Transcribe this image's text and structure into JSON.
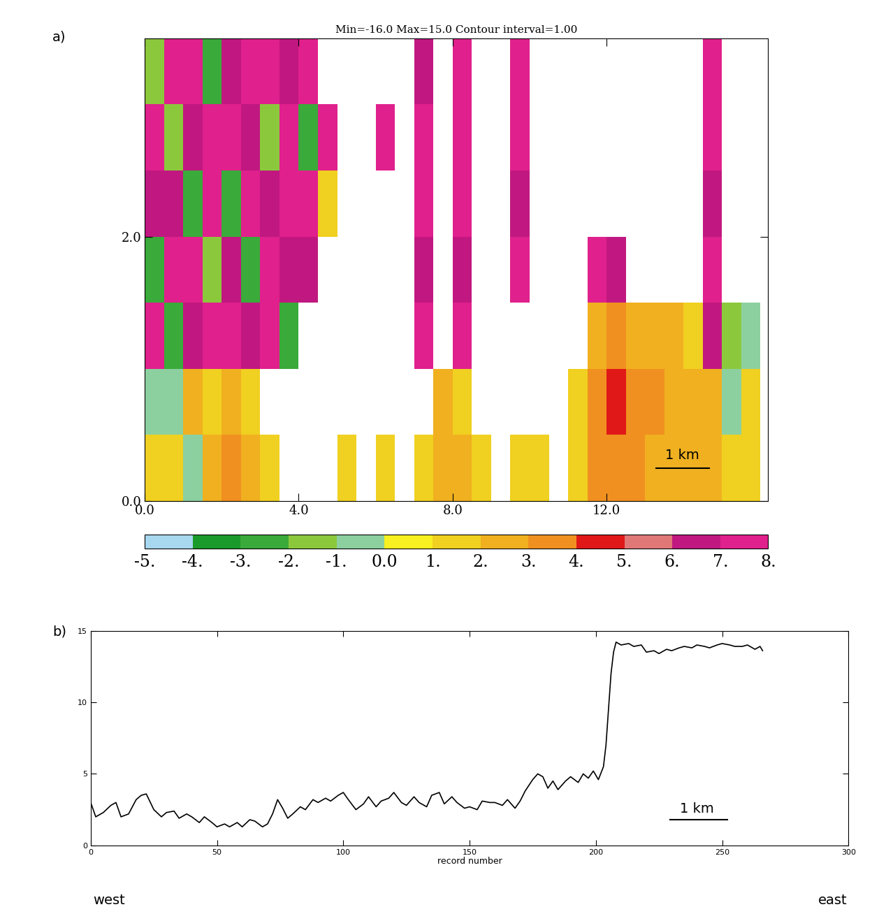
{
  "chart_data": [
    {
      "type": "heatmap",
      "title": "Min=-16.0 Max=15.0 Contour interval=1.00",
      "annotations": [
        "a)",
        "1 km"
      ],
      "x_edges": [
        0,
        0.5,
        1,
        1.5,
        2,
        2.5,
        3,
        3.5,
        4,
        4.5,
        5,
        5.5,
        6,
        6.5,
        7,
        7.5,
        8,
        8.5,
        9,
        9.5,
        10,
        10.5,
        11,
        11.5,
        12,
        12.5,
        13,
        13.5,
        14,
        14.5,
        15,
        15.5,
        16
      ],
      "y_edges": [
        0,
        0.5,
        1,
        1.5,
        2,
        2.5,
        3,
        3.5
      ],
      "cells": [
        [
          1,
          1,
          -1,
          2,
          3,
          2,
          1,
          null,
          null,
          null,
          1,
          null,
          1,
          null,
          1,
          2,
          2,
          1,
          null,
          1,
          1,
          null,
          1,
          3,
          3,
          3,
          2,
          2,
          2,
          2,
          1,
          1
        ],
        [
          -1,
          -1,
          2,
          1,
          2,
          1,
          null,
          null,
          null,
          null,
          null,
          null,
          null,
          null,
          null,
          2,
          1,
          null,
          null,
          null,
          null,
          null,
          1,
          3,
          4,
          3,
          3,
          2,
          2,
          2,
          -1,
          1
        ],
        [
          7,
          -3,
          6,
          7,
          7,
          6,
          7,
          -3,
          null,
          null,
          null,
          null,
          null,
          null,
          7,
          null,
          7,
          null,
          null,
          null,
          null,
          null,
          null,
          2,
          3,
          2,
          2,
          2,
          1,
          6,
          -2,
          -1
        ],
        [
          -3,
          7,
          7,
          -2,
          6,
          -3,
          7,
          6,
          6,
          null,
          null,
          null,
          null,
          null,
          6,
          null,
          6,
          null,
          null,
          7,
          null,
          null,
          null,
          7,
          6,
          null,
          null,
          null,
          null,
          7,
          null,
          null
        ],
        [
          6,
          6,
          -3,
          7,
          -3,
          7,
          6,
          7,
          7,
          1,
          null,
          null,
          null,
          null,
          7,
          null,
          7,
          null,
          null,
          6,
          null,
          null,
          null,
          null,
          null,
          null,
          null,
          null,
          null,
          6,
          null,
          null
        ],
        [
          7,
          -2,
          6,
          7,
          7,
          6,
          -2,
          7,
          -3,
          7,
          null,
          null,
          7,
          null,
          7,
          null,
          7,
          null,
          null,
          7,
          null,
          null,
          null,
          null,
          null,
          null,
          null,
          null,
          null,
          7,
          null,
          null
        ],
        [
          -2,
          7,
          7,
          -3,
          6,
          7,
          7,
          6,
          7,
          null,
          null,
          null,
          null,
          null,
          6,
          null,
          7,
          null,
          null,
          7,
          null,
          null,
          null,
          null,
          null,
          null,
          null,
          null,
          null,
          7,
          null,
          null
        ]
      ],
      "xlim": [
        0,
        16.2
      ],
      "ylim": [
        0,
        3.5
      ],
      "xticks": [
        {
          "value": 0,
          "label": "0.0"
        },
        {
          "value": 4,
          "label": "4.0"
        },
        {
          "value": 8,
          "label": "8.0"
        },
        {
          "value": 12,
          "label": "12.0"
        }
      ],
      "yticks": [
        {
          "value": 0,
          "label": "0.0"
        },
        {
          "value": 2,
          "label": "2.0"
        }
      ],
      "colorbar": {
        "range": [
          -5,
          8
        ],
        "ticks": [
          {
            "value": -5,
            "label": "-5."
          },
          {
            "value": -4,
            "label": "-4."
          },
          {
            "value": -3,
            "label": "-3."
          },
          {
            "value": -2,
            "label": "-2."
          },
          {
            "value": -1,
            "label": "-1."
          },
          {
            "value": 0,
            "label": "0.0"
          },
          {
            "value": 1,
            "label": "1."
          },
          {
            "value": 2,
            "label": "2."
          },
          {
            "value": 3,
            "label": "3."
          },
          {
            "value": 4,
            "label": "4."
          },
          {
            "value": 5,
            "label": "5."
          },
          {
            "value": 6,
            "label": "6."
          },
          {
            "value": 7,
            "label": "7."
          },
          {
            "value": 8,
            "label": "8."
          }
        ],
        "colors": [
          "#a8d8f0",
          "#1a9a2a",
          "#3aaa3a",
          "#8cc83c",
          "#8cd0a0",
          "#f8f020",
          "#f0d020",
          "#f0b020",
          "#f09020",
          "#e01818",
          "#e07878",
          "#c01880",
          "#e0208c"
        ]
      }
    },
    {
      "type": "line",
      "annotations": [
        "b)",
        "1 km",
        "west",
        "east"
      ],
      "xlabel": "record number",
      "color": "#000000",
      "x": [
        0,
        2,
        5,
        8,
        10,
        12,
        15,
        18,
        20,
        22,
        25,
        28,
        30,
        33,
        35,
        38,
        40,
        43,
        45,
        48,
        50,
        53,
        55,
        58,
        60,
        63,
        65,
        68,
        70,
        72,
        74,
        76,
        78,
        80,
        83,
        85,
        88,
        90,
        93,
        95,
        98,
        100,
        102,
        105,
        108,
        110,
        113,
        115,
        118,
        120,
        123,
        125,
        128,
        130,
        133,
        135,
        138,
        140,
        143,
        145,
        148,
        150,
        153,
        155,
        158,
        160,
        163,
        165,
        168,
        170,
        172,
        175,
        177,
        179,
        181,
        183,
        185,
        188,
        190,
        193,
        195,
        197,
        199,
        201,
        203,
        204,
        205,
        206,
        207,
        208,
        210,
        213,
        215,
        218,
        220,
        223,
        225,
        228,
        230,
        233,
        235,
        238,
        240,
        243,
        245,
        248,
        250,
        253,
        255,
        258,
        260,
        263,
        265,
        266
      ],
      "values": [
        3,
        2,
        2.3,
        2.8,
        3,
        2,
        2.2,
        3.2,
        3.5,
        3.6,
        2.5,
        2.0,
        2.3,
        2.4,
        1.9,
        2.2,
        2.0,
        1.6,
        2.0,
        1.6,
        1.3,
        1.5,
        1.3,
        1.6,
        1.3,
        1.8,
        1.7,
        1.3,
        1.5,
        2.2,
        3.2,
        2.6,
        1.9,
        2.2,
        2.7,
        2.5,
        3.2,
        3.0,
        3.3,
        3.1,
        3.5,
        3.7,
        3.2,
        2.5,
        2.9,
        3.4,
        2.7,
        3.1,
        3.3,
        3.7,
        3.0,
        2.8,
        3.4,
        3.0,
        2.7,
        3.5,
        3.7,
        2.9,
        3.4,
        3.0,
        2.6,
        2.7,
        2.5,
        3.1,
        3.0,
        3.0,
        2.8,
        3.2,
        2.6,
        3.1,
        3.8,
        4.6,
        5.0,
        4.8,
        4.0,
        4.5,
        3.9,
        4.5,
        4.8,
        4.4,
        5.0,
        4.7,
        5.2,
        4.6,
        5.5,
        7,
        9.5,
        12,
        13.5,
        14.2,
        14.0,
        14.1,
        13.9,
        14.0,
        13.5,
        13.6,
        13.4,
        13.7,
        13.6,
        13.8,
        13.9,
        13.8,
        14.0,
        13.9,
        13.8,
        14.0,
        14.1,
        14.0,
        13.9,
        13.9,
        14.0,
        13.7,
        13.9,
        13.6
      ],
      "xlim": [
        0,
        300
      ],
      "ylim": [
        0,
        15
      ],
      "xticks": [
        0,
        50,
        100,
        150,
        200,
        250,
        300
      ],
      "yticks": [
        0,
        5,
        10,
        15
      ]
    }
  ]
}
